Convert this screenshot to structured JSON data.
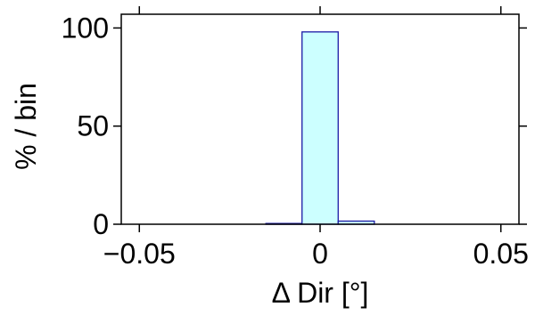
{
  "chart_data": {
    "type": "bar",
    "subtype": "histogram",
    "xlabel": "Δ Dir [°]",
    "ylabel": "% / bin",
    "xlim": [
      -0.055,
      0.055
    ],
    "ylim": [
      0,
      107
    ],
    "x_ticks": [
      {
        "value": -0.05,
        "label": "−0.05"
      },
      {
        "value": 0,
        "label": "0"
      },
      {
        "value": 0.05,
        "label": "0.05"
      }
    ],
    "y_ticks": [
      {
        "value": 0,
        "label": "0"
      },
      {
        "value": 50,
        "label": "50"
      },
      {
        "value": 100,
        "label": "100"
      }
    ],
    "bins": [
      {
        "x0": -0.015,
        "x1": -0.005,
        "value": 0.4
      },
      {
        "x0": -0.005,
        "x1": 0.005,
        "value": 98
      },
      {
        "x0": 0.005,
        "x1": 0.015,
        "value": 1.6
      }
    ],
    "colors": {
      "bar_fill": "#ccffff",
      "bar_stroke": "#1a1aa6",
      "axis": "#000000"
    },
    "grid": false,
    "legend": "none"
  }
}
